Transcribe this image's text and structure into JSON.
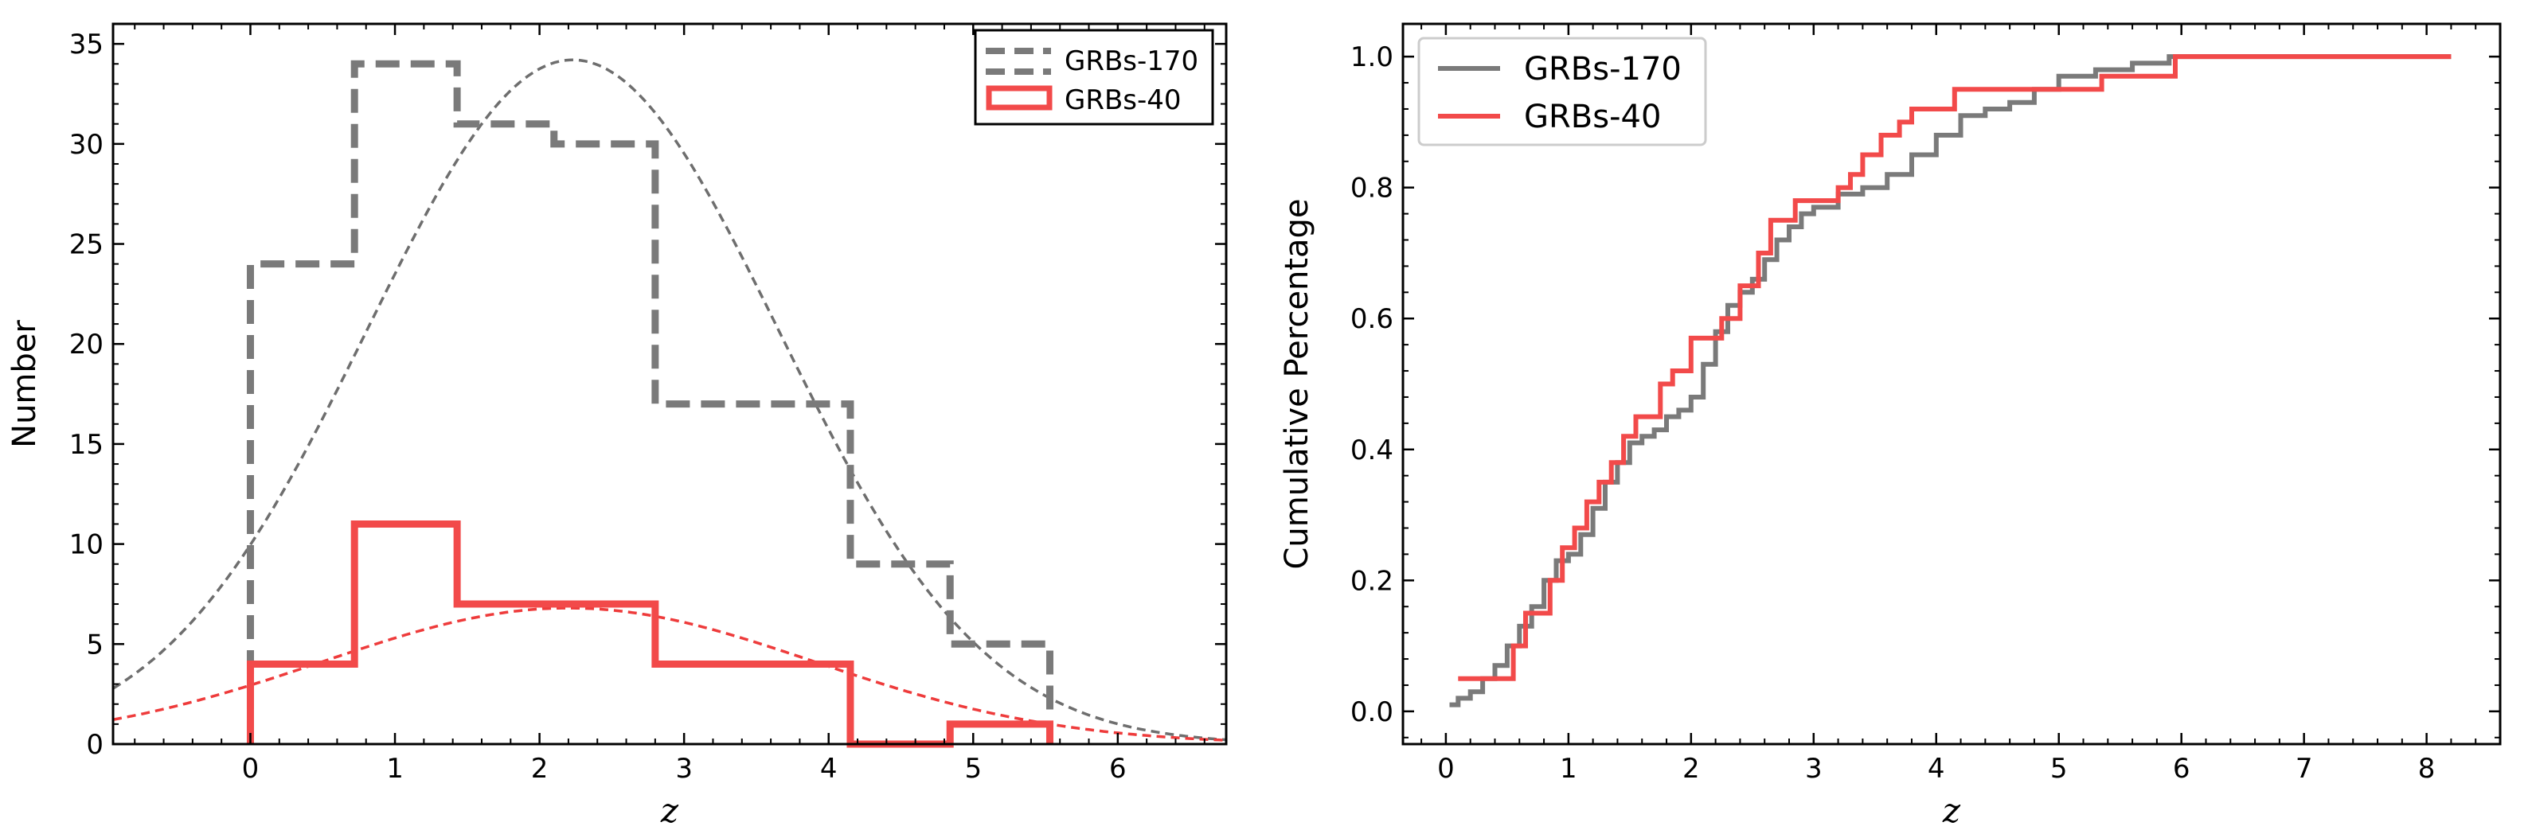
{
  "colors": {
    "gray": "#7a7a7a",
    "red": "#f24a4a",
    "red_dashed": "#ee3b3b",
    "gray_dashed": "#6e6e6e",
    "axis": "#000000"
  },
  "chart_data": [
    {
      "type": "histogram",
      "title": "",
      "xlabel": "z",
      "ylabel": "Number",
      "xlim": [
        -0.95,
        6.75
      ],
      "ylim": [
        0,
        36
      ],
      "xticks": [
        0,
        1,
        2,
        3,
        4,
        5,
        6
      ],
      "yticks": [
        0,
        5,
        10,
        15,
        20,
        25,
        30,
        35
      ],
      "x_tick_labels": [
        "0",
        "1",
        "2",
        "3",
        "4",
        "5",
        "6"
      ],
      "y_tick_labels": [
        "0",
        "5",
        "10",
        "15",
        "20",
        "25",
        "30",
        "35"
      ],
      "legend_position": "top-right",
      "series": [
        {
          "name": "GRBs-170",
          "style": "dashed-step",
          "bin_edges": [
            0.0,
            0.72,
            1.43,
            2.1,
            2.8,
            4.15,
            4.84,
            5.53
          ],
          "counts": [
            24,
            34,
            31,
            30,
            17,
            9,
            5
          ]
        },
        {
          "name": "GRBs-40",
          "style": "solid-step",
          "bin_edges": [
            0.0,
            0.72,
            1.43,
            2.8,
            4.15,
            4.84,
            5.53
          ],
          "counts": [
            4,
            11,
            7,
            4,
            0,
            1
          ]
        }
      ],
      "fits": [
        {
          "name": "GRBs-170 gaussian fit",
          "amplitude": 34.2,
          "mean": 2.23,
          "sigma": 1.42
        },
        {
          "name": "GRBs-40 gaussian fit",
          "amplitude": 6.8,
          "mean": 2.2,
          "sigma": 1.7
        }
      ]
    },
    {
      "type": "line",
      "title": "",
      "xlabel": "z",
      "ylabel": "Cumulative Percentage",
      "xlim": [
        -0.35,
        8.6
      ],
      "ylim": [
        -0.05,
        1.05
      ],
      "xticks": [
        0,
        1,
        2,
        3,
        4,
        5,
        6,
        7,
        8
      ],
      "yticks": [
        0.0,
        0.2,
        0.4,
        0.6,
        0.8,
        1.0
      ],
      "x_tick_labels": [
        "0",
        "1",
        "2",
        "3",
        "4",
        "5",
        "6",
        "7",
        "8"
      ],
      "y_tick_labels": [
        "0.0",
        "0.2",
        "0.4",
        "0.6",
        "0.8",
        "1.0"
      ],
      "legend_position": "top-left",
      "series": [
        {
          "name": "GRBs-170",
          "x": [
            0.03,
            0.1,
            0.2,
            0.3,
            0.4,
            0.5,
            0.6,
            0.7,
            0.8,
            0.9,
            1.0,
            1.1,
            1.2,
            1.3,
            1.4,
            1.5,
            1.6,
            1.7,
            1.8,
            1.9,
            2.0,
            2.1,
            2.2,
            2.3,
            2.4,
            2.5,
            2.6,
            2.7,
            2.8,
            2.9,
            3.0,
            3.2,
            3.4,
            3.6,
            3.8,
            4.0,
            4.2,
            4.4,
            4.6,
            4.8,
            5.0,
            5.3,
            5.6,
            5.9,
            8.2
          ],
          "y": [
            0.01,
            0.02,
            0.03,
            0.05,
            0.07,
            0.1,
            0.13,
            0.16,
            0.2,
            0.23,
            0.24,
            0.27,
            0.31,
            0.35,
            0.38,
            0.41,
            0.42,
            0.43,
            0.45,
            0.46,
            0.48,
            0.53,
            0.58,
            0.62,
            0.64,
            0.66,
            0.69,
            0.72,
            0.74,
            0.76,
            0.77,
            0.79,
            0.8,
            0.82,
            0.85,
            0.88,
            0.91,
            0.92,
            0.93,
            0.95,
            0.97,
            0.98,
            0.99,
            1.0,
            1.0
          ]
        },
        {
          "name": "GRBs-40",
          "x": [
            0.1,
            0.55,
            0.65,
            0.85,
            0.95,
            1.05,
            1.15,
            1.25,
            1.35,
            1.45,
            1.55,
            1.75,
            1.85,
            2.0,
            2.25,
            2.4,
            2.55,
            2.65,
            2.85,
            3.1,
            3.2,
            3.3,
            3.4,
            3.55,
            3.7,
            3.8,
            3.85,
            4.15,
            4.85,
            5.35,
            5.95,
            8.2
          ],
          "y": [
            0.05,
            0.1,
            0.15,
            0.2,
            0.25,
            0.28,
            0.32,
            0.35,
            0.38,
            0.42,
            0.45,
            0.5,
            0.52,
            0.57,
            0.6,
            0.65,
            0.7,
            0.75,
            0.78,
            0.78,
            0.8,
            0.82,
            0.85,
            0.88,
            0.9,
            0.92,
            0.92,
            0.95,
            0.95,
            0.97,
            1.0,
            1.0
          ]
        }
      ]
    }
  ]
}
